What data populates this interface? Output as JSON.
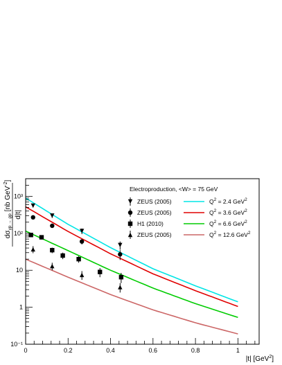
{
  "chart_data": {
    "type": "scatter",
    "title": "",
    "xlabel": "|t| [GeV²]",
    "ylabel": "dσγp→ϱp/d|t| [nb GeV⁻²]",
    "xlim": [
      0,
      1.1
    ],
    "ylim": [
      0.1,
      3000
    ],
    "yscale": "log",
    "x_ticks": [
      0,
      0.2,
      0.4,
      0.6,
      0.8,
      1
    ],
    "x_tick_labels": [
      "0",
      "0.2",
      "0.4",
      "0.6",
      "0.8",
      "1"
    ],
    "y_ticks": [
      0.1,
      1,
      10,
      100,
      1000
    ],
    "y_tick_labels": [
      "10⁻¹",
      "1",
      "10",
      "10²",
      "10³"
    ],
    "legend_header": "Electroproduction, <W> = 75 GeV",
    "legend_placement": "top-right",
    "marker_series": [
      {
        "name": "ZEUS (2005)",
        "marker": "triangle-down",
        "color": "#000000",
        "x": [
          0.035,
          0.125,
          0.265,
          0.445
        ],
        "y": [
          560,
          300,
          115,
          48
        ],
        "err": [
          60,
          40,
          20,
          12
        ]
      },
      {
        "name": "ZEUS (2005)",
        "marker": "circle",
        "color": "#000000",
        "x": [
          0.035,
          0.125,
          0.265,
          0.445
        ],
        "y": [
          270,
          160,
          60,
          27
        ],
        "err": [
          30,
          20,
          10,
          8
        ]
      },
      {
        "name": "H1 (2010)",
        "marker": "square",
        "color": "#000000",
        "x": [
          0.025,
          0.075,
          0.125,
          0.175,
          0.25,
          0.35,
          0.45
        ],
        "y": [
          90,
          78,
          35,
          25,
          20,
          9,
          6.5
        ],
        "err": [
          10,
          10,
          6,
          5,
          4,
          2.5,
          2
        ]
      },
      {
        "name": "ZEUS (2005)",
        "marker": "triangle-up",
        "color": "#000000",
        "x": [
          0.035,
          0.125,
          0.265,
          0.445
        ],
        "y": [
          37,
          13,
          7.5,
          3.5
        ],
        "err": [
          8,
          3,
          2,
          1
        ]
      }
    ],
    "curve_series": [
      {
        "name": "Q² = 2.4 GeV²",
        "color": "#00e5e5",
        "x": [
          0,
          0.2,
          0.4,
          0.6,
          0.8,
          1
        ],
        "y": [
          900,
          175,
          41,
          11,
          3.8,
          1.4
        ]
      },
      {
        "name": "Q² = 3.6 GeV²",
        "color": "#e00000",
        "x": [
          0,
          0.2,
          0.4,
          0.6,
          0.8,
          1
        ],
        "y": [
          520,
          112,
          28,
          8,
          2.8,
          1.05
        ]
      },
      {
        "name": "Q² = 6.6 GeV²",
        "color": "#00cc00",
        "x": [
          0,
          0.2,
          0.4,
          0.6,
          0.8,
          1
        ],
        "y": [
          115,
          34,
          10,
          3.3,
          1.25,
          0.53
        ]
      },
      {
        "name": "Q² = 12.6 GeV²",
        "color": "#cc6666",
        "x": [
          0,
          0.2,
          0.4,
          0.6,
          0.8,
          1
        ],
        "y": [
          20,
          6.5,
          2.2,
          0.85,
          0.38,
          0.19
        ]
      }
    ]
  }
}
